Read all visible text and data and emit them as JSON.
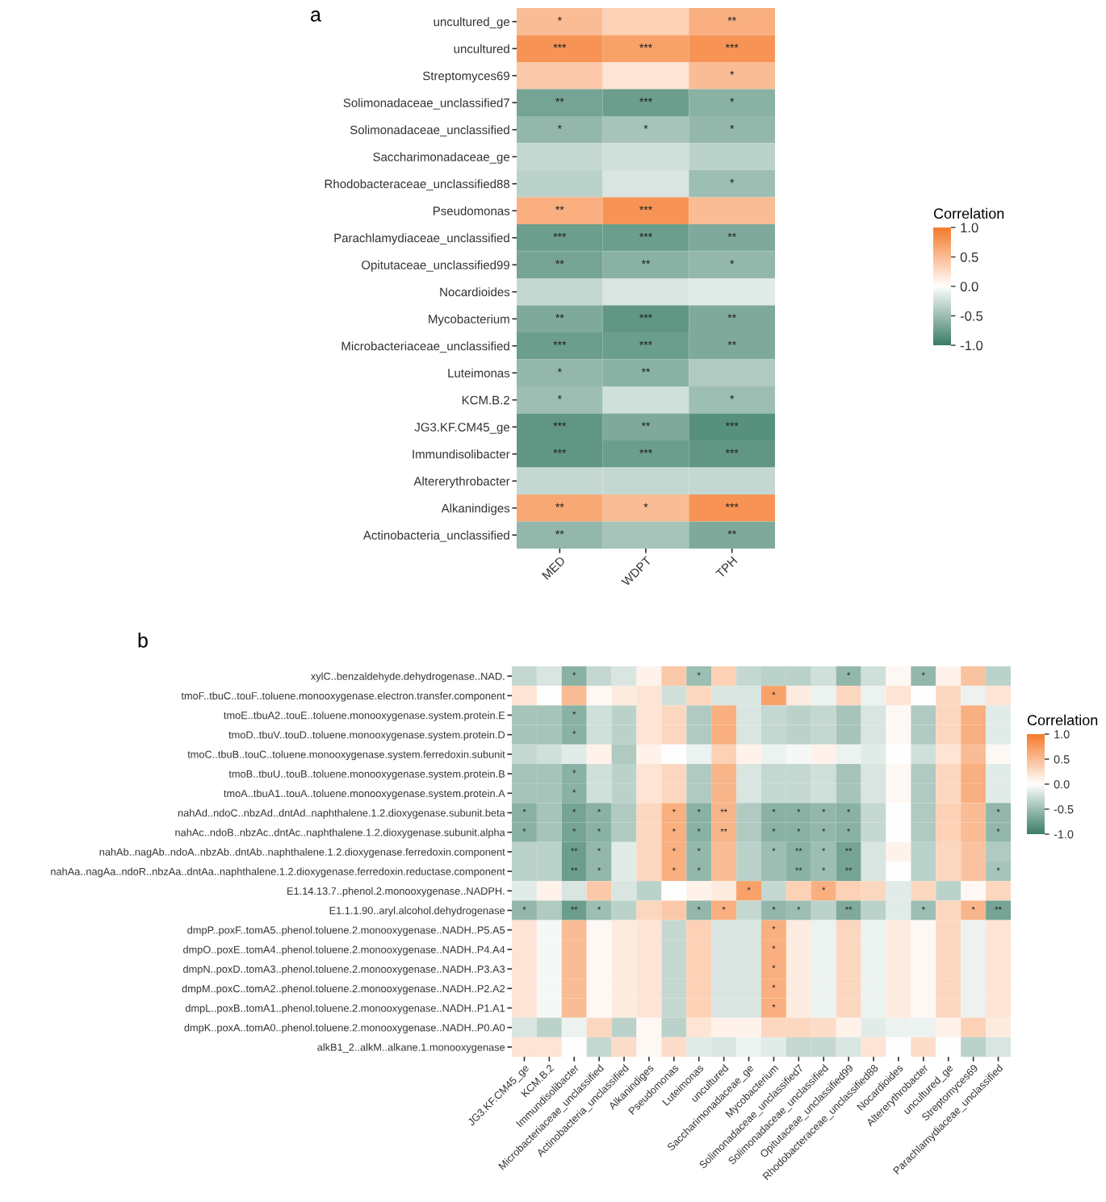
{
  "chart_data": [
    {
      "type": "heatmap",
      "title": "a",
      "clabel": "Correlation",
      "clim": [
        -1,
        1
      ],
      "cticks": [
        {
          "value": -1,
          "label": "-1.0"
        },
        {
          "value": -0.5,
          "label": "-0.5"
        },
        {
          "value": 0,
          "label": "0.0"
        },
        {
          "value": 0.5,
          "label": "0.5"
        },
        {
          "value": 1,
          "label": "1.0"
        }
      ],
      "categories": [
        "MED",
        "WDPT",
        "TPH"
      ],
      "y_categories": [
        "uncultured_ge",
        "uncultured",
        "Streptomyces69",
        "Solimonadaceae_unclassified7",
        "Solimonadaceae_unclassified",
        "Saccharimonadaceae_ge",
        "Rhodobacteraceae_unclassified88",
        "Pseudomonas",
        "Parachlamydiaceae_unclassified",
        "Opitutaceae_unclassified99",
        "Nocardioides",
        "Mycobacterium",
        "Microbacteriaceae_unclassified",
        "Luteimonas",
        "KCM.B.2",
        "JG3.KF.CM45_ge",
        "Immundisolibacter",
        "Altererythrobacter",
        "Alkanindiges",
        "Actinobacteria_unclassified"
      ],
      "cells": [
        [
          0.5,
          0.35,
          0.6
        ],
        [
          0.8,
          0.7,
          0.8
        ],
        [
          0.4,
          0.2,
          0.5
        ],
        [
          -0.7,
          -0.75,
          -0.6
        ],
        [
          -0.55,
          -0.45,
          -0.55
        ],
        [
          -0.3,
          -0.25,
          -0.35
        ],
        [
          -0.35,
          -0.2,
          -0.5
        ],
        [
          0.6,
          0.8,
          0.5
        ],
        [
          -0.75,
          -0.75,
          -0.65
        ],
        [
          -0.7,
          -0.6,
          -0.55
        ],
        [
          -0.3,
          -0.2,
          -0.15
        ],
        [
          -0.65,
          -0.8,
          -0.65
        ],
        [
          -0.75,
          -0.75,
          -0.65
        ],
        [
          -0.55,
          -0.6,
          -0.4
        ],
        [
          -0.5,
          -0.25,
          -0.5
        ],
        [
          -0.8,
          -0.65,
          -0.85
        ],
        [
          -0.8,
          -0.75,
          -0.8
        ],
        [
          -0.3,
          -0.3,
          -0.3
        ],
        [
          0.65,
          0.5,
          0.8
        ],
        [
          -0.55,
          -0.45,
          -0.65
        ]
      ],
      "cell_labels": [
        [
          "*",
          null,
          "**"
        ],
        [
          "***",
          "***",
          "***"
        ],
        [
          null,
          null,
          "*"
        ],
        [
          "**",
          "***",
          "*"
        ],
        [
          "*",
          "*",
          "*"
        ],
        [
          null,
          null,
          null
        ],
        [
          null,
          null,
          "*"
        ],
        [
          "**",
          "***",
          null
        ],
        [
          "***",
          "***",
          "**"
        ],
        [
          "**",
          "**",
          "*"
        ],
        [
          null,
          null,
          null
        ],
        [
          "**",
          "***",
          "**"
        ],
        [
          "***",
          "***",
          "**"
        ],
        [
          "*",
          "**",
          null
        ],
        [
          "*",
          null,
          "*"
        ],
        [
          "***",
          "**",
          "***"
        ],
        [
          "***",
          "***",
          "***"
        ],
        [
          null,
          null,
          null
        ],
        [
          "**",
          "*",
          "***"
        ],
        [
          "**",
          null,
          "**"
        ]
      ]
    },
    {
      "type": "heatmap",
      "title": "b",
      "clabel": "Correlation",
      "clim": [
        -1,
        1
      ],
      "cticks": [
        {
          "value": -1,
          "label": "-1.0"
        },
        {
          "value": -0.5,
          "label": "-0.5"
        },
        {
          "value": 0,
          "label": "0.0"
        },
        {
          "value": 0.5,
          "label": "0.5"
        },
        {
          "value": 1,
          "label": "1.0"
        }
      ],
      "categories": [
        "JG3.KF.CM45_ge",
        "KCM.B.2",
        "Immundisolibacter",
        "Microbacteriaceae_unclassified",
        "Actinobacteria_unclassified",
        "Alkanindiges",
        "Pseudomonas",
        "Luteimonas",
        "uncultured",
        "Saccharimonadaceae_ge",
        "Mycobacterium",
        "Solimonadaceae_unclassified7",
        "Solimonadaceae_unclassified",
        "Opitutaceae_unclassified99",
        "Rhodobacteraceae_unclassified88",
        "Nocardioides",
        "Altererythrobacter",
        "uncultured_ge",
        "Streptomyces69",
        "Parachlamydiaceae_unclassified"
      ],
      "y_categories": [
        "xylC..benzaldehyde.dehydrogenase..NAD.",
        "tmoF..tbuC..touF..toluene.monooxygenase.electron.transfer.component",
        "tmoE..tbuA2..touE..toluene.monooxygenase.system.protein.E",
        "tmoD..tbuV..touD..toluene.monooxygenase.system.protein.D",
        "tmoC..tbuB..touC..toluene.monooxygenase.system.ferredoxin.subunit",
        "tmoB..tbuU..touB..toluene.monooxygenase.system.protein.B",
        "tmoA..tbuA1..touA..toluene.monooxygenase.system.protein.A",
        "nahAd..ndoC..nbzAd..dntAd..naphthalene.1.2.dioxygenase.subunit.beta",
        "nahAc..ndoB..nbzAc..dntAc..naphthalene.1.2.dioxygenase.subunit.alpha",
        "nahAb..nagAb..ndoA..nbzAb..dntAb..naphthalene.1.2.dioxygenase.ferredoxin.component",
        "nahAa..nagAa..ndoR..nbzAa..dntAa..naphthalene.1.2.dioxygenase.ferredoxin.reductase.component",
        "E1.14.13.7..phenol.2.monooxygenase..NADPH.",
        "E1.1.1.90..aryl.alcohol.dehydrogenase",
        "dmpP..poxF..tomA5..phenol.toluene.2.monooxygenase..NADH..P5.A5",
        "dmpO..poxE..tomA4..phenol.toluene.2.monooxygenase..NADH..P4.A4",
        "dmpN..poxD..tomA3..phenol.toluene.2.monooxygenase..NADH..P3.A3",
        "dmpM..poxC..tomA2..phenol.toluene.2.monooxygenase..NADH..P2.A2",
        "dmpL..poxB..tomA1..phenol.toluene.2.monooxygenase..NADH..P1.A1",
        "dmpK..poxA..tomA0..phenol.toluene.2.monooxygenase..NADH..P0.A0",
        "alkB1_2..alkM..alkane.1.monooxygenase"
      ],
      "cells": [
        [
          -0.3,
          -0.2,
          -0.6,
          -0.3,
          -0.2,
          0.1,
          0.4,
          -0.5,
          0.35,
          -0.3,
          -0.35,
          -0.35,
          -0.25,
          -0.55,
          -0.25,
          0.05,
          -0.55,
          0.1,
          0.45,
          -0.35
        ],
        [
          0.2,
          0.0,
          0.5,
          0.05,
          0.15,
          0.2,
          -0.25,
          0.3,
          -0.2,
          -0.2,
          0.7,
          0.15,
          -0.1,
          0.3,
          -0.1,
          0.2,
          0.0,
          0.3,
          -0.1,
          0.2
        ],
        [
          -0.45,
          -0.45,
          -0.6,
          -0.25,
          -0.35,
          0.2,
          0.3,
          -0.4,
          0.6,
          -0.2,
          -0.3,
          -0.35,
          -0.3,
          -0.45,
          -0.2,
          0.05,
          -0.4,
          0.3,
          0.6,
          -0.15
        ],
        [
          -0.45,
          -0.45,
          -0.6,
          -0.25,
          -0.35,
          0.2,
          0.3,
          -0.4,
          0.6,
          -0.2,
          -0.3,
          -0.35,
          -0.3,
          -0.45,
          -0.2,
          0.05,
          -0.4,
          0.3,
          0.6,
          -0.15
        ],
        [
          -0.3,
          -0.25,
          -0.15,
          0.1,
          -0.4,
          0.1,
          0.0,
          -0.1,
          0.35,
          0.1,
          -0.1,
          -0.05,
          0.1,
          -0.1,
          -0.15,
          0.0,
          -0.25,
          0.2,
          0.5,
          0.05
        ],
        [
          -0.45,
          -0.45,
          -0.6,
          -0.25,
          -0.35,
          0.2,
          0.3,
          -0.4,
          0.55,
          -0.2,
          -0.3,
          -0.3,
          -0.25,
          -0.45,
          -0.2,
          0.05,
          -0.4,
          0.3,
          0.6,
          -0.15
        ],
        [
          -0.45,
          -0.45,
          -0.6,
          -0.25,
          -0.35,
          0.2,
          0.3,
          -0.4,
          0.55,
          -0.2,
          -0.3,
          -0.3,
          -0.25,
          -0.45,
          -0.2,
          0.05,
          -0.4,
          0.3,
          0.6,
          -0.15
        ],
        [
          -0.6,
          -0.45,
          -0.7,
          -0.6,
          -0.4,
          0.3,
          0.6,
          -0.6,
          0.55,
          -0.4,
          -0.6,
          -0.6,
          -0.55,
          -0.6,
          -0.3,
          0.0,
          -0.4,
          0.35,
          0.5,
          -0.55
        ],
        [
          -0.6,
          -0.45,
          -0.7,
          -0.6,
          -0.4,
          0.3,
          0.6,
          -0.6,
          0.55,
          -0.4,
          -0.6,
          -0.6,
          -0.55,
          -0.6,
          -0.3,
          0.0,
          -0.4,
          0.35,
          0.5,
          -0.55
        ],
        [
          -0.35,
          -0.35,
          -0.75,
          -0.55,
          -0.15,
          0.3,
          0.6,
          -0.55,
          0.5,
          -0.35,
          -0.5,
          -0.6,
          -0.5,
          -0.7,
          -0.2,
          0.1,
          -0.35,
          0.3,
          0.45,
          -0.4
        ],
        [
          -0.35,
          -0.35,
          -0.75,
          -0.55,
          -0.15,
          0.3,
          0.6,
          -0.55,
          0.5,
          -0.35,
          -0.5,
          -0.6,
          -0.5,
          -0.7,
          -0.2,
          0.0,
          -0.35,
          0.3,
          0.45,
          -0.45
        ],
        [
          -0.15,
          0.1,
          -0.2,
          0.4,
          -0.2,
          -0.35,
          0.0,
          0.1,
          0.15,
          0.7,
          -0.3,
          0.35,
          0.6,
          0.35,
          0.3,
          -0.15,
          0.3,
          -0.35,
          0.05,
          0.3
        ],
        [
          -0.55,
          -0.4,
          -0.75,
          -0.5,
          -0.35,
          0.3,
          0.4,
          -0.55,
          0.6,
          -0.3,
          -0.55,
          -0.5,
          -0.35,
          -0.65,
          -0.35,
          -0.15,
          -0.5,
          0.3,
          0.55,
          -0.7
        ],
        [
          0.2,
          -0.05,
          0.5,
          0.05,
          0.15,
          0.2,
          -0.3,
          0.35,
          -0.2,
          -0.2,
          0.6,
          0.15,
          -0.1,
          0.3,
          -0.1,
          0.15,
          0.05,
          0.3,
          -0.1,
          0.2
        ],
        [
          0.2,
          -0.05,
          0.5,
          0.05,
          0.15,
          0.2,
          -0.3,
          0.35,
          -0.2,
          -0.2,
          0.6,
          0.15,
          -0.1,
          0.3,
          -0.1,
          0.15,
          0.05,
          0.3,
          -0.1,
          0.2
        ],
        [
          0.2,
          -0.05,
          0.5,
          0.05,
          0.15,
          0.2,
          -0.3,
          0.35,
          -0.2,
          -0.2,
          0.6,
          0.15,
          -0.1,
          0.3,
          -0.1,
          0.15,
          0.05,
          0.3,
          -0.1,
          0.2
        ],
        [
          0.2,
          -0.05,
          0.5,
          0.05,
          0.15,
          0.2,
          -0.3,
          0.35,
          -0.2,
          -0.2,
          0.6,
          0.15,
          -0.1,
          0.3,
          -0.1,
          0.15,
          0.05,
          0.3,
          -0.1,
          0.2
        ],
        [
          0.2,
          -0.05,
          0.5,
          0.05,
          0.15,
          0.2,
          -0.3,
          0.35,
          -0.2,
          -0.2,
          0.6,
          0.15,
          -0.1,
          0.3,
          -0.1,
          0.15,
          0.05,
          0.3,
          -0.1,
          0.2
        ],
        [
          -0.2,
          -0.35,
          -0.1,
          0.3,
          -0.35,
          0.05,
          -0.35,
          0.2,
          0.1,
          0.1,
          0.3,
          0.3,
          0.25,
          0.1,
          -0.15,
          -0.1,
          -0.1,
          0.1,
          0.35,
          0.15
        ],
        [
          0.2,
          0.2,
          0.0,
          -0.3,
          0.25,
          0.05,
          0.25,
          -0.15,
          -0.2,
          -0.1,
          -0.15,
          -0.3,
          -0.3,
          -0.2,
          0.2,
          0.0,
          0.25,
          0.0,
          -0.35,
          -0.2
        ]
      ],
      "cell_labels": [
        [
          null,
          null,
          "*",
          null,
          null,
          null,
          null,
          "*",
          null,
          null,
          null,
          null,
          null,
          "*",
          null,
          null,
          "*",
          null,
          null,
          null
        ],
        [
          null,
          null,
          null,
          null,
          null,
          null,
          null,
          null,
          null,
          null,
          "*",
          null,
          null,
          null,
          null,
          null,
          null,
          null,
          null,
          null
        ],
        [
          null,
          null,
          "*",
          null,
          null,
          null,
          null,
          null,
          null,
          null,
          null,
          null,
          null,
          null,
          null,
          null,
          null,
          null,
          null,
          null
        ],
        [
          null,
          null,
          "*",
          null,
          null,
          null,
          null,
          null,
          null,
          null,
          null,
          null,
          null,
          null,
          null,
          null,
          null,
          null,
          null,
          null
        ],
        [
          null,
          null,
          null,
          null,
          null,
          null,
          null,
          null,
          null,
          null,
          null,
          null,
          null,
          null,
          null,
          null,
          null,
          null,
          null,
          null
        ],
        [
          null,
          null,
          "*",
          null,
          null,
          null,
          null,
          null,
          null,
          null,
          null,
          null,
          null,
          null,
          null,
          null,
          null,
          null,
          null,
          null
        ],
        [
          null,
          null,
          "*",
          null,
          null,
          null,
          null,
          null,
          null,
          null,
          null,
          null,
          null,
          null,
          null,
          null,
          null,
          null,
          null,
          null
        ],
        [
          "*",
          null,
          "*",
          "*",
          null,
          null,
          "*",
          "*",
          "**",
          null,
          "*",
          "*",
          "*",
          "*",
          null,
          null,
          null,
          null,
          null,
          "*"
        ],
        [
          "*",
          null,
          "*",
          "*",
          null,
          null,
          "*",
          "*",
          "**",
          null,
          "*",
          "*",
          "*",
          "*",
          null,
          null,
          null,
          null,
          null,
          "*"
        ],
        [
          null,
          null,
          "**",
          "*",
          null,
          null,
          "*",
          "*",
          null,
          null,
          "*",
          "**",
          "*",
          "**",
          null,
          null,
          null,
          null,
          null,
          null
        ],
        [
          null,
          null,
          "**",
          "*",
          null,
          null,
          "*",
          "*",
          null,
          null,
          null,
          "**",
          "*",
          "**",
          null,
          null,
          null,
          null,
          null,
          "*"
        ],
        [
          null,
          null,
          null,
          null,
          null,
          null,
          null,
          null,
          null,
          "*",
          null,
          null,
          "*",
          null,
          null,
          null,
          null,
          null,
          null,
          null
        ],
        [
          "*",
          null,
          "**",
          "*",
          null,
          null,
          null,
          "*",
          "*",
          null,
          "*",
          "*",
          null,
          "**",
          null,
          null,
          "*",
          null,
          "*",
          "**"
        ],
        [
          null,
          null,
          null,
          null,
          null,
          null,
          null,
          null,
          null,
          null,
          "*",
          null,
          null,
          null,
          null,
          null,
          null,
          null,
          null,
          null
        ],
        [
          null,
          null,
          null,
          null,
          null,
          null,
          null,
          null,
          null,
          null,
          "*",
          null,
          null,
          null,
          null,
          null,
          null,
          null,
          null,
          null
        ],
        [
          null,
          null,
          null,
          null,
          null,
          null,
          null,
          null,
          null,
          null,
          "*",
          null,
          null,
          null,
          null,
          null,
          null,
          null,
          null,
          null
        ],
        [
          null,
          null,
          null,
          null,
          null,
          null,
          null,
          null,
          null,
          null,
          "*",
          null,
          null,
          null,
          null,
          null,
          null,
          null,
          null,
          null
        ],
        [
          null,
          null,
          null,
          null,
          null,
          null,
          null,
          null,
          null,
          null,
          "*",
          null,
          null,
          null,
          null,
          null,
          null,
          null,
          null,
          null
        ],
        [
          null,
          null,
          null,
          null,
          null,
          null,
          null,
          null,
          null,
          null,
          null,
          null,
          null,
          null,
          null,
          null,
          null,
          null,
          null,
          null
        ],
        [
          null,
          null,
          null,
          null,
          null,
          null,
          null,
          null,
          null,
          null,
          null,
          null,
          null,
          null,
          null,
          null,
          null,
          null,
          null,
          null
        ]
      ]
    }
  ]
}
